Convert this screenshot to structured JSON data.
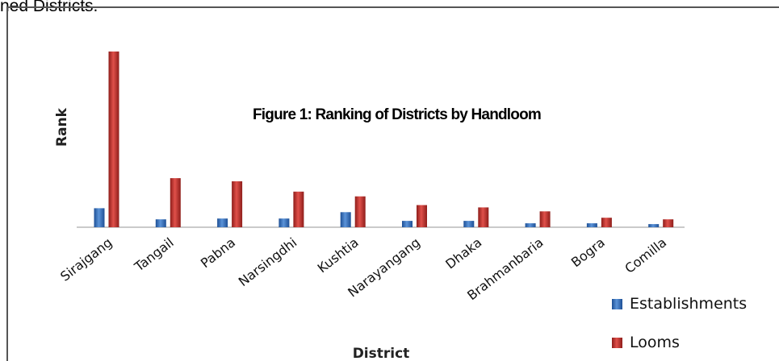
{
  "caption_fragment": "ned Districts.",
  "chart_data": {
    "type": "bar",
    "title": "Figure 1: Ranking of Districts by Handloom",
    "xlabel": "District",
    "ylabel": "Rank",
    "categories": [
      "Sirajgang",
      "Tangail",
      "Pabna",
      "Narsingdhi",
      "Kushtia",
      "Narayangang",
      "Dhaka",
      "Brahmanbaria",
      "Bogra",
      "Comilla"
    ],
    "series": [
      {
        "name": "Establishments",
        "color": "#2f6fc4",
        "values": [
          24,
          10,
          11,
          11,
          19,
          8,
          8,
          5,
          5,
          4
        ]
      },
      {
        "name": "Looms",
        "color": "#c0302b",
        "values": [
          222,
          62,
          58,
          45,
          39,
          28,
          25,
          20,
          12,
          10
        ]
      }
    ],
    "ylim": [
      0,
      230
    ],
    "grid": false,
    "legend": "bottom-right"
  }
}
